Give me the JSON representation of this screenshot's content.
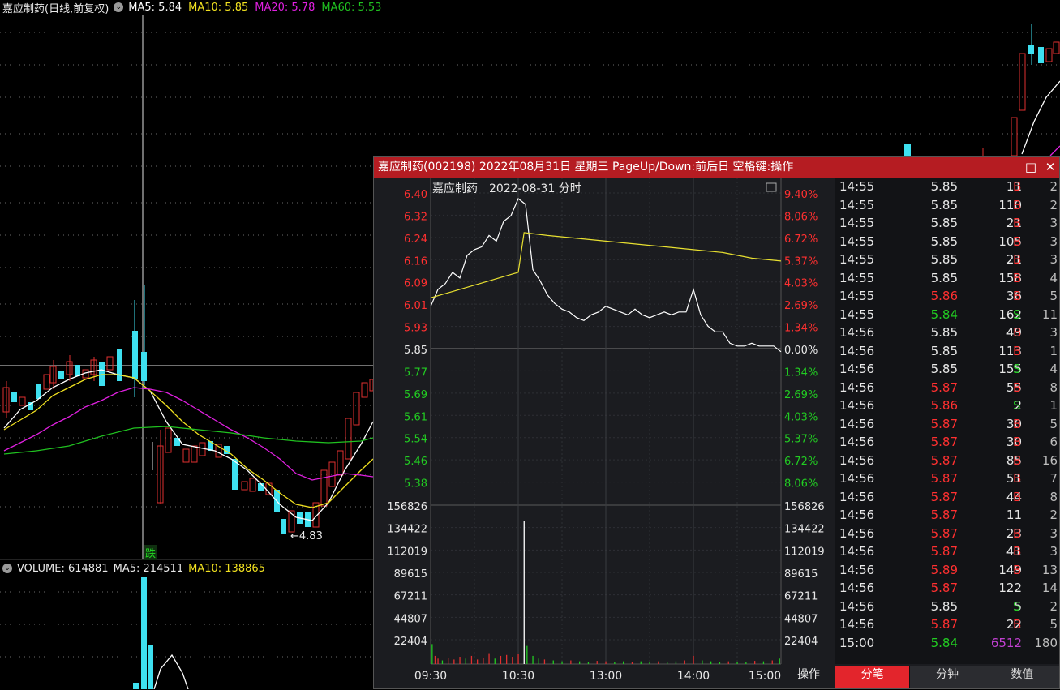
{
  "main": {
    "title": "嘉应制药(日线,前复权)",
    "ma_items": [
      {
        "label": "MA5: 5.84",
        "color": "#ffffff"
      },
      {
        "label": "MA10: 5.85",
        "color": "#f0e020"
      },
      {
        "label": "MA20: 5.78",
        "color": "#e020e0"
      },
      {
        "label": "MA60: 5.53",
        "color": "#20c020"
      }
    ],
    "low_marker": "←4.83",
    "die_label": "跌"
  },
  "volume": {
    "label": "VOLUME: 614881",
    "ma5": "MA5: 214511",
    "ma10": "MA10: 138865",
    "ma10_color": "#f0e020"
  },
  "popup": {
    "title": "嘉应制药(002198) 2022年08月31日 星期三 PageUp/Down:前后日 空格键:操作",
    "chart_name": "嘉应制药",
    "chart_date": "2022-08-31 分时",
    "max_icon": "maximize-icon",
    "close_icon": "close-icon",
    "op_label": "操作",
    "tabs": [
      "分笔",
      "分钟",
      "数值"
    ]
  },
  "chart_data": {
    "type": "line",
    "title": "嘉应制药 2022-08-31 分时",
    "prev_close": 5.85,
    "price_ticks": [
      "6.40",
      "6.32",
      "6.24",
      "6.16",
      "6.09",
      "6.01",
      "5.93",
      "5.85",
      "5.77",
      "5.69",
      "5.61",
      "5.54",
      "5.46",
      "5.38"
    ],
    "pct_ticks": [
      "9.40%",
      "8.06%",
      "6.72%",
      "5.37%",
      "4.03%",
      "2.69%",
      "1.34%",
      "0.00%",
      "1.34%",
      "2.69%",
      "4.03%",
      "5.37%",
      "6.72%",
      "8.06%"
    ],
    "volume_ticks": [
      "156826",
      "134422",
      "112019",
      "89615",
      "67211",
      "44807",
      "22404"
    ],
    "time_ticks": [
      "09:30",
      "10:30",
      "13:00",
      "14:00",
      "15:00"
    ],
    "ylim": [
      5.34,
      6.41
    ],
    "volume_max": 175000,
    "series": [
      {
        "name": "price",
        "color": "#ffffff",
        "x": [
          0,
          5,
          10,
          15,
          20,
          25,
          30,
          35,
          40,
          45,
          50,
          55,
          60,
          65,
          70,
          75,
          80,
          85,
          90,
          95,
          100,
          105,
          110,
          115,
          120,
          125,
          130,
          135,
          140,
          145,
          150,
          155,
          160,
          165,
          170,
          175,
          180,
          185,
          190,
          195,
          200,
          205,
          210,
          215,
          220,
          225,
          230,
          235,
          240
        ],
        "y": [
          6.0,
          6.06,
          6.08,
          6.12,
          6.1,
          6.18,
          6.2,
          6.21,
          6.25,
          6.23,
          6.3,
          6.32,
          6.38,
          6.36,
          6.13,
          6.09,
          6.04,
          6.01,
          5.99,
          5.98,
          5.96,
          5.95,
          5.97,
          5.98,
          6.0,
          5.99,
          5.98,
          5.97,
          5.99,
          5.97,
          5.96,
          5.97,
          5.98,
          5.97,
          5.98,
          5.98,
          6.06,
          5.97,
          5.93,
          5.91,
          5.91,
          5.87,
          5.86,
          5.86,
          5.87,
          5.86,
          5.86,
          5.86,
          5.84
        ]
      },
      {
        "name": "average",
        "color": "#e8e030",
        "x": [
          0,
          20,
          40,
          60,
          64,
          80,
          100,
          120,
          140,
          160,
          180,
          200,
          220,
          240
        ],
        "y": [
          6.03,
          6.06,
          6.09,
          6.12,
          6.26,
          6.25,
          6.24,
          6.23,
          6.22,
          6.21,
          6.2,
          6.19,
          6.17,
          6.16
        ]
      }
    ],
    "volume": [
      {
        "x": 1,
        "v": 22000,
        "c": "#22cc22"
      },
      {
        "x": 3,
        "v": 9000,
        "c": "#e03030"
      },
      {
        "x": 5,
        "v": 6000,
        "c": "#e03030"
      },
      {
        "x": 8,
        "v": 4000,
        "c": "#22cc22"
      },
      {
        "x": 12,
        "v": 7000,
        "c": "#e03030"
      },
      {
        "x": 16,
        "v": 5000,
        "c": "#e03030"
      },
      {
        "x": 20,
        "v": 8000,
        "c": "#e03030"
      },
      {
        "x": 24,
        "v": 6000,
        "c": "#22cc22"
      },
      {
        "x": 28,
        "v": 9000,
        "c": "#e03030"
      },
      {
        "x": 32,
        "v": 5000,
        "c": "#e03030"
      },
      {
        "x": 36,
        "v": 7000,
        "c": "#e03030"
      },
      {
        "x": 40,
        "v": 12000,
        "c": "#e03030"
      },
      {
        "x": 44,
        "v": 6000,
        "c": "#22cc22"
      },
      {
        "x": 48,
        "v": 9000,
        "c": "#e03030"
      },
      {
        "x": 52,
        "v": 10000,
        "c": "#e03030"
      },
      {
        "x": 56,
        "v": 8000,
        "c": "#e03030"
      },
      {
        "x": 60,
        "v": 11000,
        "c": "#e03030"
      },
      {
        "x": 64,
        "v": 158000,
        "c": "#ffffff"
      },
      {
        "x": 66,
        "v": 20000,
        "c": "#22cc22"
      },
      {
        "x": 70,
        "v": 9000,
        "c": "#22cc22"
      },
      {
        "x": 74,
        "v": 6000,
        "c": "#22cc22"
      },
      {
        "x": 78,
        "v": 5000,
        "c": "#e03030"
      },
      {
        "x": 84,
        "v": 4000,
        "c": "#22cc22"
      },
      {
        "x": 90,
        "v": 3000,
        "c": "#22cc22"
      },
      {
        "x": 96,
        "v": 4000,
        "c": "#e03030"
      },
      {
        "x": 102,
        "v": 3000,
        "c": "#22cc22"
      },
      {
        "x": 108,
        "v": 2500,
        "c": "#22cc22"
      },
      {
        "x": 114,
        "v": 3500,
        "c": "#e03030"
      },
      {
        "x": 120,
        "v": 3000,
        "c": "#e03030"
      },
      {
        "x": 126,
        "v": 2500,
        "c": "#22cc22"
      },
      {
        "x": 132,
        "v": 3000,
        "c": "#22cc22"
      },
      {
        "x": 138,
        "v": 2500,
        "c": "#e03030"
      },
      {
        "x": 144,
        "v": 3000,
        "c": "#22cc22"
      },
      {
        "x": 150,
        "v": 2500,
        "c": "#22cc22"
      },
      {
        "x": 156,
        "v": 3000,
        "c": "#e03030"
      },
      {
        "x": 162,
        "v": 2500,
        "c": "#22cc22"
      },
      {
        "x": 168,
        "v": 3000,
        "c": "#22cc22"
      },
      {
        "x": 174,
        "v": 4000,
        "c": "#e03030"
      },
      {
        "x": 180,
        "v": 9000,
        "c": "#e03030"
      },
      {
        "x": 186,
        "v": 4000,
        "c": "#22cc22"
      },
      {
        "x": 192,
        "v": 3000,
        "c": "#22cc22"
      },
      {
        "x": 198,
        "v": 2500,
        "c": "#22cc22"
      },
      {
        "x": 204,
        "v": 3000,
        "c": "#e03030"
      },
      {
        "x": 210,
        "v": 2500,
        "c": "#22cc22"
      },
      {
        "x": 216,
        "v": 2500,
        "c": "#22cc22"
      },
      {
        "x": 222,
        "v": 3500,
        "c": "#e03030"
      },
      {
        "x": 228,
        "v": 3000,
        "c": "#22cc22"
      },
      {
        "x": 234,
        "v": 4000,
        "c": "#e03030"
      },
      {
        "x": 239,
        "v": 6000,
        "c": "#22cc22"
      }
    ]
  },
  "trades": [
    {
      "time": "14:55",
      "price": "5.85",
      "vol": "11",
      "side": "B",
      "count": "2",
      "price_color": "#e8e8e8"
    },
    {
      "time": "14:55",
      "price": "5.85",
      "vol": "110",
      "side": "B",
      "count": "2",
      "price_color": "#e8e8e8"
    },
    {
      "time": "14:55",
      "price": "5.85",
      "vol": "21",
      "side": "B",
      "count": "3",
      "price_color": "#e8e8e8"
    },
    {
      "time": "14:55",
      "price": "5.85",
      "vol": "105",
      "side": "B",
      "count": "3",
      "price_color": "#e8e8e8"
    },
    {
      "time": "14:55",
      "price": "5.85",
      "vol": "21",
      "side": "B",
      "count": "3",
      "price_color": "#e8e8e8"
    },
    {
      "time": "14:55",
      "price": "5.85",
      "vol": "158",
      "side": "B",
      "count": "4",
      "price_color": "#e8e8e8"
    },
    {
      "time": "14:55",
      "price": "5.86",
      "vol": "36",
      "side": "B",
      "count": "5",
      "price_color": "#ff3030"
    },
    {
      "time": "14:55",
      "price": "5.84",
      "vol": "162",
      "side": "S",
      "count": "11",
      "price_color": "#22cc22"
    },
    {
      "time": "14:56",
      "price": "5.85",
      "vol": "49",
      "side": "B",
      "count": "3",
      "price_color": "#e8e8e8"
    },
    {
      "time": "14:56",
      "price": "5.85",
      "vol": "113",
      "side": "B",
      "count": "1",
      "price_color": "#e8e8e8"
    },
    {
      "time": "14:56",
      "price": "5.85",
      "vol": "155",
      "side": "S",
      "count": "4",
      "price_color": "#e8e8e8"
    },
    {
      "time": "14:56",
      "price": "5.87",
      "vol": "55",
      "side": "B",
      "count": "8",
      "price_color": "#ff3030"
    },
    {
      "time": "14:56",
      "price": "5.86",
      "vol": "2",
      "side": "S",
      "count": "1",
      "price_color": "#ff3030"
    },
    {
      "time": "14:56",
      "price": "5.87",
      "vol": "30",
      "side": "B",
      "count": "5",
      "price_color": "#ff3030"
    },
    {
      "time": "14:56",
      "price": "5.87",
      "vol": "30",
      "side": "B",
      "count": "6",
      "price_color": "#ff3030"
    },
    {
      "time": "14:56",
      "price": "5.87",
      "vol": "85",
      "side": "B",
      "count": "16",
      "price_color": "#ff3030"
    },
    {
      "time": "14:56",
      "price": "5.87",
      "vol": "51",
      "side": "B",
      "count": "7",
      "price_color": "#ff3030"
    },
    {
      "time": "14:56",
      "price": "5.87",
      "vol": "44",
      "side": "B",
      "count": "8",
      "price_color": "#ff3030"
    },
    {
      "time": "14:56",
      "price": "5.87",
      "vol": "11",
      "side": "",
      "count": "2",
      "price_color": "#ff3030"
    },
    {
      "time": "14:56",
      "price": "5.87",
      "vol": "23",
      "side": "B",
      "count": "3",
      "price_color": "#ff3030"
    },
    {
      "time": "14:56",
      "price": "5.87",
      "vol": "41",
      "side": "B",
      "count": "3",
      "price_color": "#ff3030"
    },
    {
      "time": "14:56",
      "price": "5.89",
      "vol": "149",
      "side": "B",
      "count": "13",
      "price_color": "#ff3030"
    },
    {
      "time": "14:56",
      "price": "5.87",
      "vol": "122",
      "side": "",
      "count": "14",
      "price_color": "#ff3030"
    },
    {
      "time": "14:56",
      "price": "5.85",
      "vol": "5",
      "side": "S",
      "count": "2",
      "price_color": "#e8e8e8"
    },
    {
      "time": "14:56",
      "price": "5.87",
      "vol": "22",
      "side": "B",
      "count": "5",
      "price_color": "#ff3030"
    },
    {
      "time": "15:00",
      "price": "5.84",
      "vol": "6512",
      "side": "",
      "count": "180",
      "price_color": "#22cc22",
      "vol_color": "#c040d0"
    }
  ]
}
